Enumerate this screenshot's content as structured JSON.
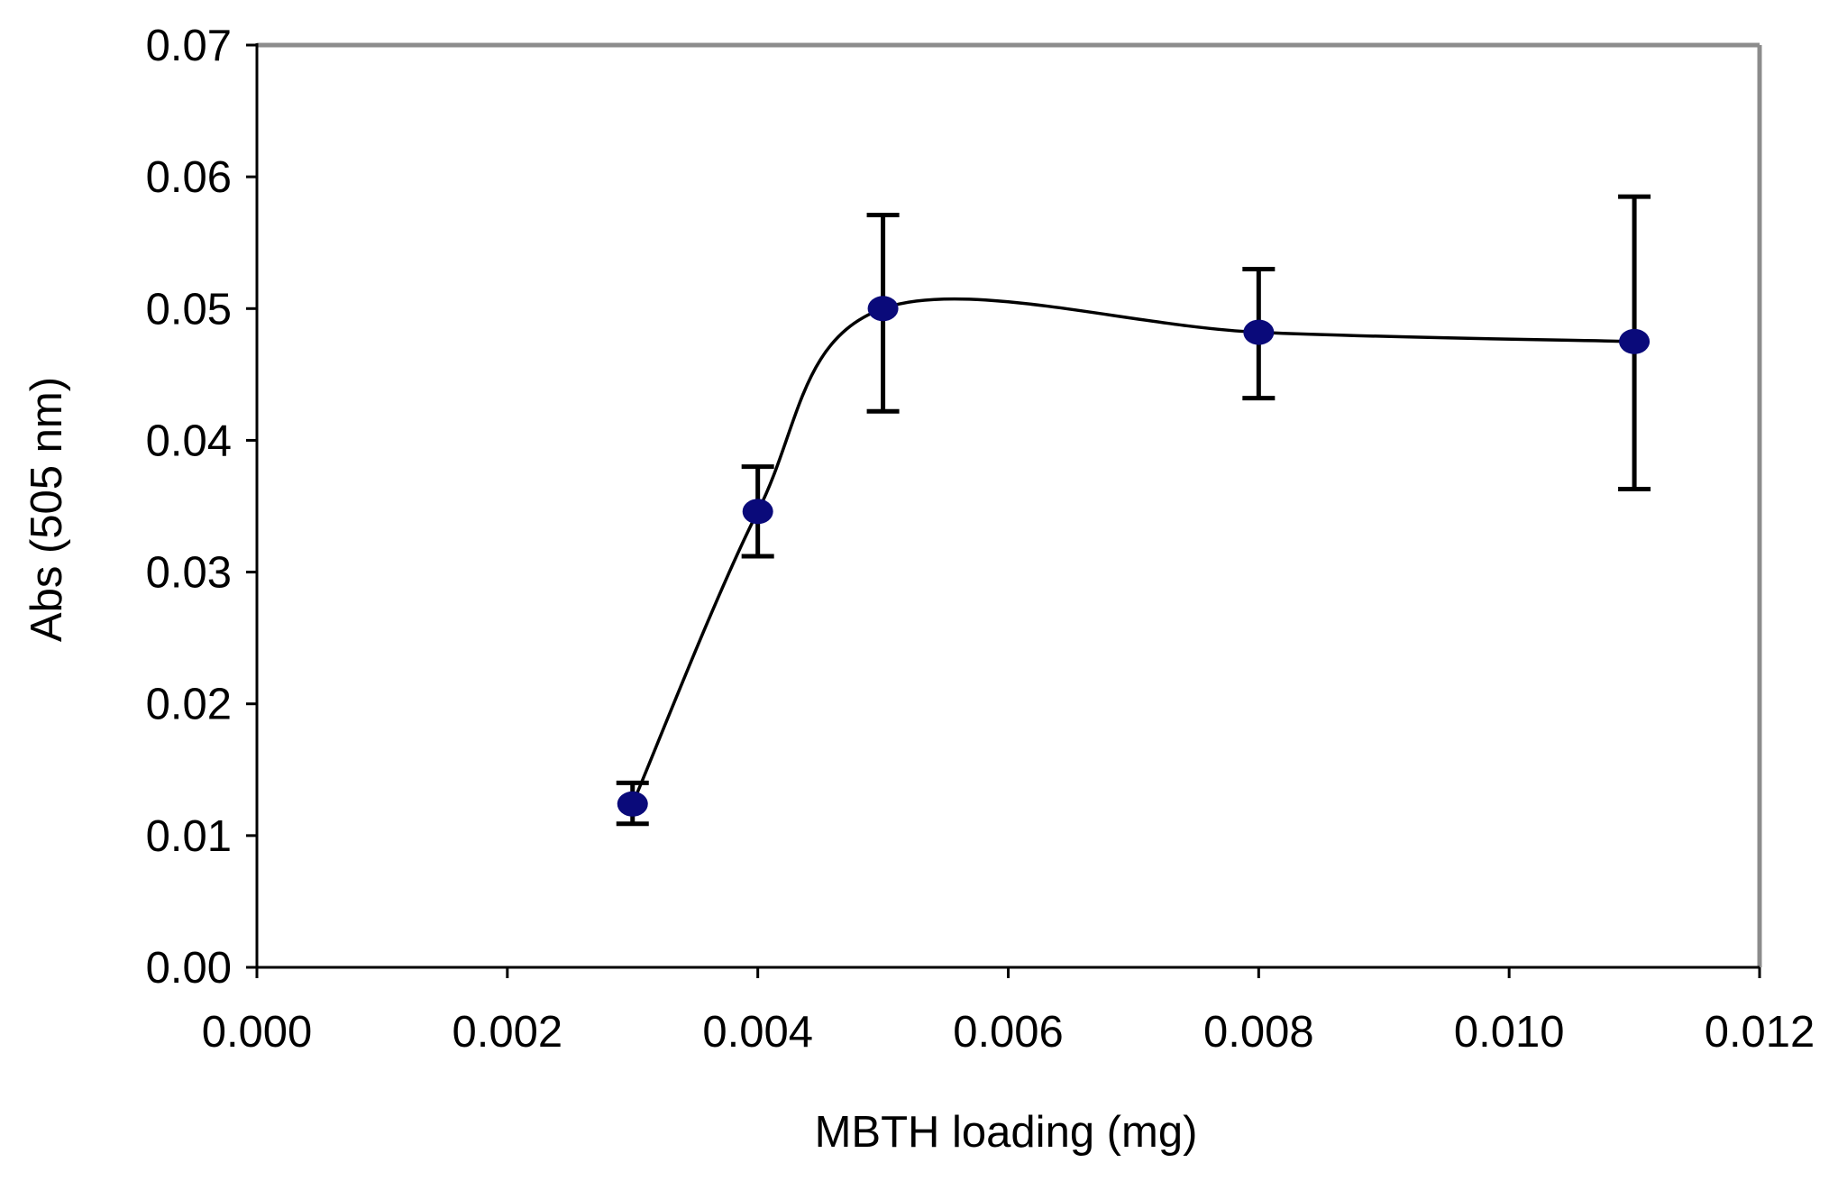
{
  "chart_data": {
    "type": "scatter",
    "title": "",
    "xlabel": "MBTH loading (mg)",
    "ylabel": "Abs (505 nm)",
    "xlim": [
      0.0,
      0.012
    ],
    "ylim": [
      0.0,
      0.07
    ],
    "x_ticks": [
      "0.000",
      "0.002",
      "0.004",
      "0.006",
      "0.008",
      "0.010",
      "0.012"
    ],
    "y_ticks": [
      "0.00",
      "0.01",
      "0.02",
      "0.03",
      "0.04",
      "0.05",
      "0.06",
      "0.07"
    ],
    "grid": false,
    "legend": "none",
    "series": [
      {
        "x": [
          0.003,
          0.004,
          0.005,
          0.008,
          0.011
        ],
        "y": [
          0.0124,
          0.0346,
          0.05,
          0.0482,
          0.0475
        ],
        "error_low": [
          0.0015,
          0.0034,
          0.0078,
          0.005,
          0.0112
        ],
        "error_high": [
          0.0016,
          0.0034,
          0.0071,
          0.0048,
          0.011
        ],
        "marker_color": "#0a0a7a",
        "line_color": "#000000",
        "line_style": "smoothed"
      }
    ],
    "frame_color": "#8c8c8c"
  }
}
